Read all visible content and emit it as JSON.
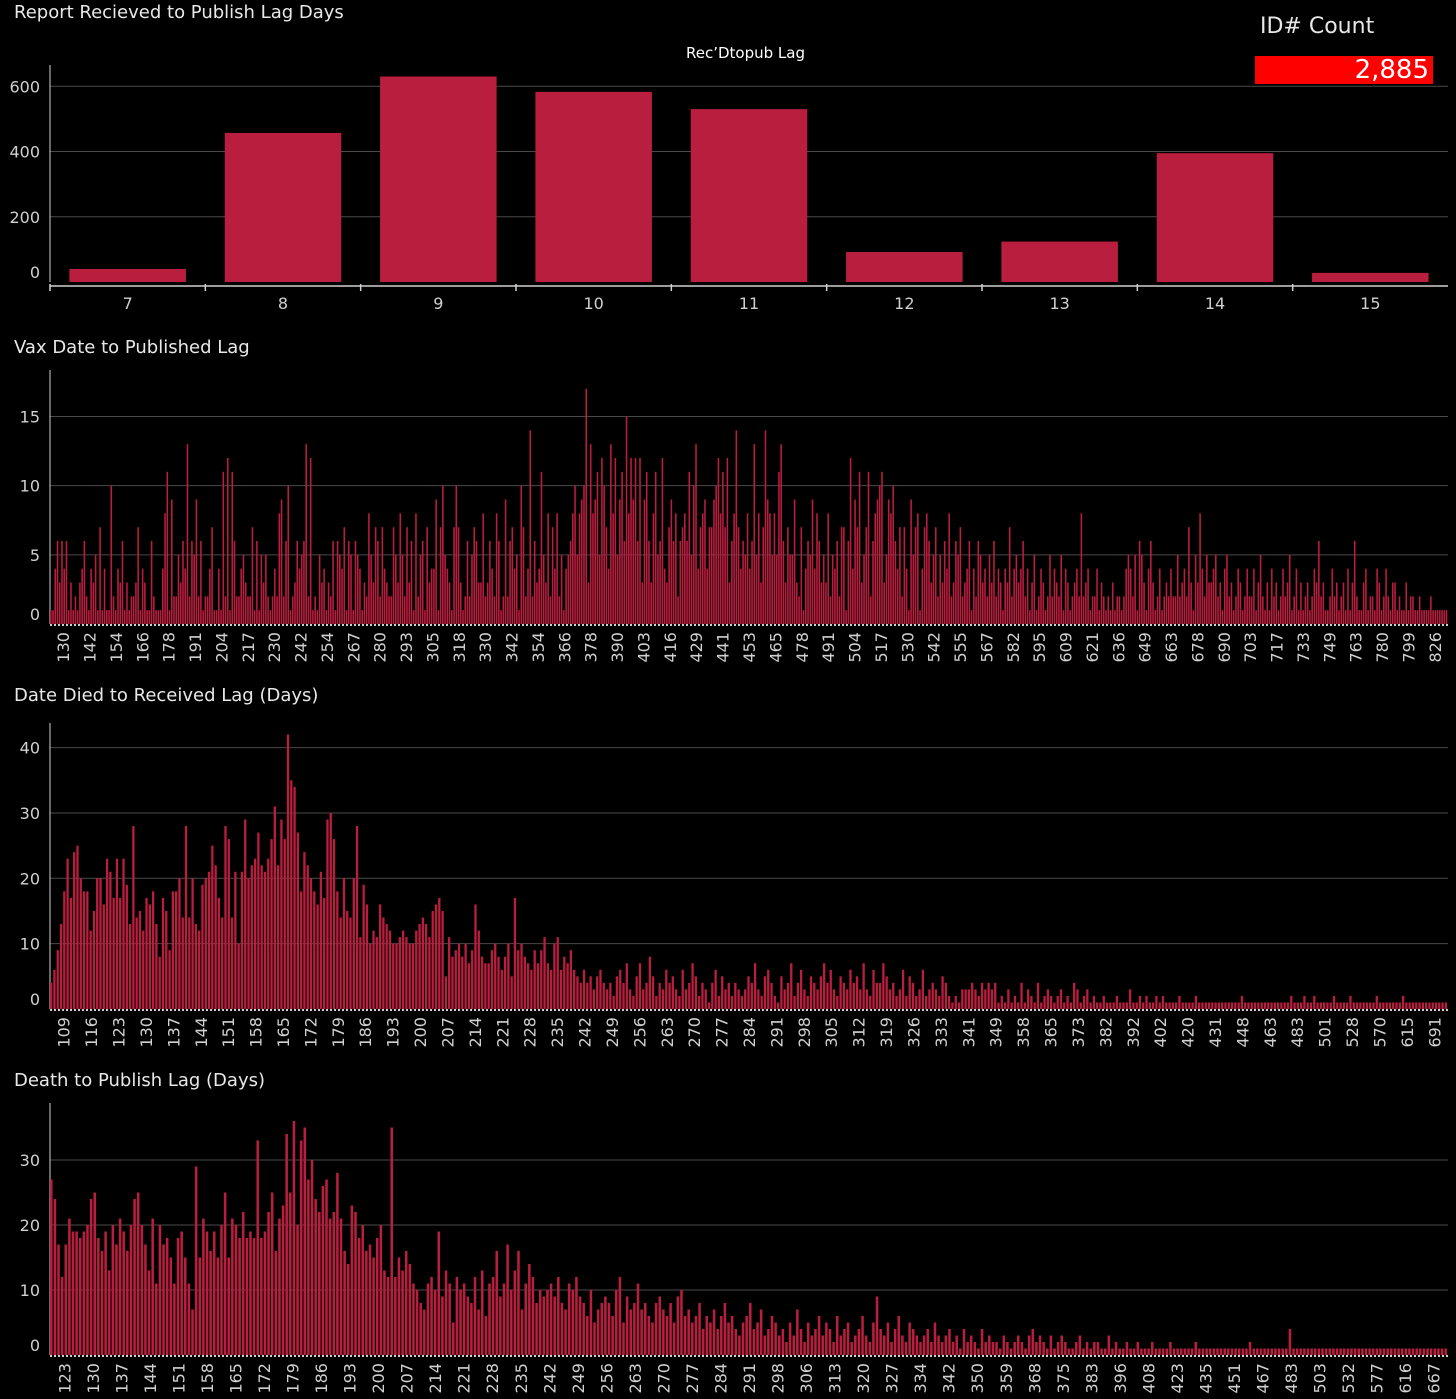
{
  "kpi": {
    "label": "ID# Count",
    "value": "2,885"
  },
  "colors": {
    "bar": "#b91e3f",
    "grid": "#4a4a4a",
    "axis": "#d0d0d0",
    "kpi": "#ff0000"
  },
  "chart_data": [
    {
      "type": "bar",
      "title": "Report Recieved to Publish Lag Days",
      "subtitle": "Rec’Dtopub Lag",
      "categories": [
        "7",
        "8",
        "9",
        "10",
        "11",
        "12",
        "13",
        "14",
        "15"
      ],
      "values": [
        40,
        457,
        630,
        583,
        530,
        92,
        124,
        395,
        28
      ],
      "ylim": [
        0,
        650
      ],
      "yticks": [
        0,
        200,
        400,
        600
      ],
      "grid": true
    },
    {
      "type": "bar",
      "title": "Vax Date to Published Lag",
      "x_tick_labels": [
        "130",
        "142",
        "154",
        "166",
        "178",
        "191",
        "204",
        "217",
        "230",
        "242",
        "254",
        "267",
        "280",
        "293",
        "305",
        "318",
        "330",
        "342",
        "354",
        "366",
        "378",
        "390",
        "403",
        "416",
        "429",
        "441",
        "453",
        "465",
        "478",
        "491",
        "504",
        "517",
        "530",
        "542",
        "555",
        "567",
        "582",
        "595",
        "609",
        "621",
        "636",
        "649",
        "663",
        "678",
        "690",
        "703",
        "717",
        "733",
        "749",
        "763",
        "780",
        "799",
        "826"
      ],
      "values": [
        1,
        1,
        4,
        6,
        3,
        6,
        4,
        6,
        1,
        3,
        1,
        2,
        1,
        3,
        4,
        6,
        2,
        1,
        4,
        3,
        5,
        1,
        7,
        1,
        4,
        1,
        1,
        10,
        2,
        1,
        4,
        3,
        6,
        1,
        3,
        1,
        2,
        2,
        3,
        7,
        1,
        4,
        3,
        1,
        1,
        6,
        2,
        1,
        1,
        1,
        4,
        8,
        11,
        1,
        9,
        2,
        2,
        5,
        3,
        6,
        4,
        13,
        2,
        6,
        5,
        9,
        2,
        6,
        1,
        2,
        2,
        4,
        7,
        1,
        1,
        4,
        1,
        11,
        2,
        12,
        1,
        11,
        6,
        2,
        2,
        4,
        5,
        3,
        2,
        2,
        7,
        1,
        6,
        1,
        5,
        3,
        5,
        2,
        1,
        2,
        4,
        2,
        8,
        9,
        2,
        6,
        10,
        1,
        2,
        3,
        6,
        4,
        5,
        6,
        13,
        2,
        12,
        1,
        2,
        1,
        5,
        3,
        4,
        1,
        3,
        2,
        6,
        1,
        6,
        5,
        4,
        7,
        1,
        6,
        5,
        1,
        6,
        5,
        4,
        1,
        3,
        2,
        8,
        5,
        3,
        7,
        6,
        2,
        7,
        4,
        3,
        2,
        2,
        7,
        5,
        3,
        8,
        5,
        2,
        7,
        3,
        6,
        1,
        8,
        2,
        5,
        6,
        1,
        7,
        3,
        4,
        4,
        9,
        1,
        7,
        10,
        5,
        4,
        3,
        1,
        7,
        10,
        7,
        3,
        1,
        2,
        6,
        2,
        5,
        7,
        6,
        3,
        3,
        8,
        2,
        3,
        6,
        4,
        2,
        8,
        6,
        1,
        2,
        9,
        2,
        6,
        7,
        4,
        5,
        1,
        10,
        7,
        2,
        4,
        14,
        2,
        6,
        3,
        4,
        11,
        5,
        3,
        8,
        2,
        7,
        4,
        8,
        2,
        5,
        1,
        4,
        5,
        6,
        8,
        10,
        5,
        8,
        9,
        10,
        17,
        3,
        13,
        8,
        9,
        11,
        5,
        12,
        10,
        7,
        4,
        13,
        8,
        12,
        5,
        9,
        11,
        6,
        15,
        8,
        12,
        9,
        12,
        6,
        12,
        3,
        9,
        11,
        6,
        3,
        8,
        11,
        5,
        6,
        12,
        4,
        3,
        7,
        9,
        6,
        8,
        2,
        6,
        7,
        8,
        6,
        11,
        5,
        10,
        13,
        4,
        7,
        8,
        9,
        4,
        7,
        7,
        9,
        10,
        12,
        8,
        11,
        7,
        12,
        3,
        6,
        8,
        14,
        7,
        4,
        6,
        5,
        8,
        4,
        6,
        13,
        5,
        8,
        3,
        7,
        14,
        9,
        8,
        5,
        8,
        5,
        11,
        13,
        6,
        3,
        7,
        5,
        5,
        9,
        3,
        2,
        7,
        1,
        4,
        6,
        5,
        9,
        4,
        8,
        6,
        3,
        5,
        3,
        8,
        2,
        5,
        4,
        6,
        2,
        7,
        7,
        1,
        6,
        12,
        4,
        9,
        7,
        11,
        3,
        5,
        7,
        11,
        2,
        6,
        8,
        9,
        10,
        11,
        3,
        5,
        9,
        8,
        10,
        6,
        4,
        7,
        2,
        7,
        4,
        1,
        9,
        5,
        7,
        8,
        1,
        4,
        7,
        8,
        6,
        3,
        5,
        7,
        2,
        5,
        3,
        6,
        4,
        8,
        2,
        3,
        6,
        5,
        7,
        2,
        3,
        4,
        6,
        1,
        4,
        2,
        6,
        5,
        3,
        4,
        2,
        5,
        3,
        6,
        2,
        4,
        3,
        1,
        4,
        3,
        7,
        2,
        4,
        5,
        3,
        4,
        6,
        2,
        4,
        1,
        3,
        5,
        1,
        2,
        4,
        3,
        1,
        2,
        5,
        2,
        4,
        3,
        2,
        5,
        1,
        4,
        3,
        1,
        2,
        3,
        4,
        2,
        8,
        2,
        3,
        4,
        1,
        2,
        2,
        4,
        1,
        3,
        2,
        1,
        2,
        1,
        3,
        1,
        2,
        2,
        1,
        2,
        4,
        5,
        4,
        2,
        5,
        1,
        6,
        5,
        3,
        1,
        4,
        6,
        3,
        1,
        2,
        4,
        1,
        2,
        3,
        2,
        4,
        2,
        2,
        5,
        2,
        3,
        4,
        2,
        7,
        3,
        1,
        5,
        3,
        8,
        4,
        2,
        5,
        3,
        3,
        4,
        5,
        2,
        3,
        1,
        4,
        5,
        2,
        3,
        1,
        2,
        4,
        3,
        1,
        2,
        4,
        2,
        2,
        4,
        1,
        3,
        5,
        2,
        1,
        3,
        1,
        4,
        2,
        3,
        1,
        2,
        4,
        2,
        3,
        5,
        1,
        2,
        4,
        1,
        3,
        1,
        2,
        3,
        1,
        2,
        4,
        3,
        6,
        2,
        3,
        1,
        1,
        2,
        4,
        2,
        3,
        1,
        2,
        3,
        1,
        4,
        1,
        3,
        6,
        2,
        1,
        1,
        3,
        4,
        1,
        2,
        2,
        1,
        4,
        3,
        1,
        2,
        4,
        2,
        1,
        3,
        3,
        1,
        2,
        1,
        1,
        3,
        1,
        2,
        2,
        1,
        1,
        2,
        1,
        1,
        1,
        1,
        2,
        1,
        1,
        1,
        1,
        1,
        1,
        1
      ],
      "ylim": [
        0,
        18
      ],
      "yticks": [
        0,
        5,
        10,
        15
      ],
      "grid": true
    },
    {
      "type": "bar",
      "title": "Date Died to Received  Lag (Days)",
      "x_tick_labels": [
        "109",
        "116",
        "123",
        "130",
        "137",
        "144",
        "151",
        "158",
        "165",
        "172",
        "179",
        "186",
        "193",
        "200",
        "207",
        "214",
        "221",
        "228",
        "235",
        "242",
        "249",
        "256",
        "263",
        "270",
        "277",
        "284",
        "291",
        "298",
        "305",
        "312",
        "319",
        "326",
        "333",
        "341",
        "349",
        "358",
        "365",
        "373",
        "382",
        "392",
        "402",
        "420",
        "431",
        "448",
        "463",
        "483",
        "501",
        "528",
        "570",
        "615",
        "691"
      ],
      "values": [
        4,
        6,
        9,
        13,
        18,
        23,
        17,
        24,
        25,
        20,
        18,
        18,
        12,
        15,
        20,
        20,
        16,
        23,
        21,
        17,
        23,
        17,
        23,
        19,
        13,
        28,
        14,
        15,
        12,
        17,
        16,
        18,
        13,
        8,
        17,
        15,
        9,
        18,
        18,
        20,
        14,
        28,
        14,
        20,
        13,
        12,
        19,
        20,
        21,
        25,
        22,
        17,
        14,
        28,
        26,
        14,
        21,
        10,
        21,
        29,
        20,
        22,
        23,
        27,
        22,
        21,
        23,
        26,
        31,
        22,
        29,
        26,
        42,
        35,
        34,
        27,
        18,
        24,
        22,
        20,
        18,
        16,
        21,
        17,
        29,
        30,
        26,
        18,
        14,
        20,
        15,
        14,
        20,
        28,
        11,
        19,
        16,
        10,
        12,
        11,
        16,
        14,
        13,
        12,
        10,
        10,
        11,
        12,
        11,
        10,
        10,
        12,
        13,
        14,
        13,
        11,
        15,
        16,
        17,
        15,
        5,
        11,
        8,
        9,
        10,
        8,
        10,
        7,
        9,
        16,
        12,
        8,
        7,
        7,
        9,
        10,
        8,
        6,
        8,
        10,
        5,
        17,
        9,
        10,
        8,
        7,
        6,
        9,
        7,
        9,
        11,
        7,
        6,
        10,
        11,
        6,
        8,
        7,
        9,
        6,
        5,
        4,
        6,
        4,
        5,
        3,
        5,
        6,
        4,
        3,
        4,
        2,
        5,
        6,
        4,
        7,
        3,
        2,
        5,
        7,
        3,
        4,
        8,
        5,
        2,
        4,
        3,
        6,
        4,
        5,
        3,
        2,
        6,
        3,
        4,
        7,
        5,
        2,
        4,
        3,
        1,
        4,
        6,
        2,
        5,
        3,
        4,
        2,
        4,
        3,
        2,
        3,
        5,
        4,
        7,
        3,
        2,
        5,
        6,
        4,
        2,
        1,
        5,
        3,
        4,
        7,
        2,
        4,
        6,
        3,
        2,
        5,
        4,
        3,
        5,
        7,
        4,
        6,
        3,
        2,
        5,
        4,
        3,
        6,
        4,
        5,
        3,
        7,
        3,
        2,
        6,
        4,
        4,
        7,
        5,
        3,
        4,
        2,
        3,
        6,
        2,
        5,
        4,
        2,
        3,
        6,
        2,
        3,
        4,
        3,
        2,
        5,
        4,
        2,
        1,
        2,
        1,
        3,
        3,
        3,
        4,
        3,
        2,
        4,
        3,
        4,
        3,
        4,
        1,
        2,
        1,
        3,
        1,
        2,
        1,
        4,
        1,
        3,
        2,
        1,
        4,
        1,
        2,
        3,
        2,
        1,
        2,
        3,
        1,
        2,
        1,
        4,
        3,
        1,
        2,
        3,
        1,
        2,
        1,
        1,
        2,
        1,
        1,
        1,
        2,
        1,
        1,
        1,
        3,
        1,
        1,
        2,
        1,
        2,
        1,
        1,
        2,
        1,
        2,
        1,
        1,
        1,
        1,
        2,
        1,
        1,
        1,
        1,
        2,
        1,
        1,
        1,
        1,
        1,
        1,
        1,
        1,
        1,
        1,
        1,
        1,
        1,
        2,
        1,
        1,
        1,
        1,
        1,
        1,
        1,
        1,
        1,
        1,
        1,
        1,
        1,
        1,
        2,
        1,
        1,
        1,
        2,
        1,
        1,
        2,
        1,
        1,
        1,
        1,
        1,
        2,
        1,
        1,
        1,
        1,
        2,
        1,
        1,
        1,
        1,
        1,
        1,
        1,
        2,
        1,
        1,
        1,
        1,
        1,
        1,
        1,
        2,
        1,
        1,
        1,
        1,
        1,
        1,
        1,
        1,
        1,
        1,
        1,
        1,
        1
      ],
      "ylim": [
        0,
        43
      ],
      "yticks": [
        0,
        10,
        20,
        30,
        40
      ],
      "grid": true
    },
    {
      "type": "bar",
      "title": "Death to Publish  Lag (Days)",
      "x_tick_labels": [
        "123",
        "130",
        "137",
        "144",
        "151",
        "158",
        "165",
        "172",
        "179",
        "186",
        "193",
        "200",
        "207",
        "214",
        "221",
        "228",
        "235",
        "242",
        "249",
        "256",
        "263",
        "270",
        "277",
        "284",
        "291",
        "298",
        "306",
        "313",
        "320",
        "327",
        "334",
        "342",
        "350",
        "359",
        "368",
        "375",
        "383",
        "396",
        "408",
        "423",
        "435",
        "451",
        "467",
        "483",
        "503",
        "532",
        "577",
        "616",
        "667"
      ],
      "values": [
        27,
        24,
        17,
        12,
        17,
        21,
        19,
        19,
        18,
        19,
        20,
        24,
        25,
        18,
        16,
        19,
        13,
        20,
        17,
        21,
        19,
        16,
        20,
        24,
        25,
        20,
        17,
        13,
        21,
        11,
        20,
        17,
        18,
        15,
        11,
        18,
        19,
        15,
        11,
        7,
        29,
        15,
        21,
        19,
        16,
        19,
        15,
        20,
        25,
        15,
        21,
        20,
        18,
        22,
        18,
        19,
        18,
        33,
        18,
        19,
        22,
        25,
        16,
        21,
        23,
        34,
        25,
        36,
        20,
        33,
        35,
        27,
        30,
        24,
        22,
        26,
        27,
        21,
        22,
        28,
        21,
        16,
        14,
        23,
        22,
        18,
        20,
        16,
        17,
        15,
        18,
        20,
        13,
        12,
        35,
        12,
        15,
        13,
        16,
        14,
        11,
        10,
        8,
        7,
        11,
        12,
        10,
        19,
        9,
        13,
        11,
        5,
        12,
        10,
        11,
        9,
        8,
        12,
        7,
        13,
        6,
        11,
        12,
        16,
        9,
        11,
        17,
        10,
        13,
        16,
        7,
        11,
        14,
        12,
        8,
        10,
        9,
        10,
        11,
        9,
        12,
        8,
        7,
        11,
        10,
        12,
        9,
        8,
        6,
        10,
        5,
        7,
        8,
        9,
        8,
        6,
        10,
        12,
        5,
        9,
        7,
        8,
        11,
        7,
        8,
        6,
        5,
        8,
        9,
        7,
        6,
        8,
        5,
        9,
        10,
        6,
        7,
        5,
        6,
        8,
        4,
        6,
        5,
        7,
        4,
        6,
        8,
        5,
        6,
        4,
        3,
        5,
        6,
        8,
        4,
        5,
        7,
        3,
        4,
        6,
        5,
        3,
        4,
        2,
        5,
        3,
        7,
        4,
        2,
        5,
        3,
        4,
        6,
        3,
        5,
        4,
        2,
        6,
        3,
        4,
        5,
        2,
        3,
        4,
        6,
        3,
        2,
        5,
        9,
        4,
        3,
        5,
        2,
        4,
        6,
        3,
        2,
        5,
        4,
        3,
        2,
        3,
        4,
        2,
        5,
        3,
        2,
        3,
        4,
        2,
        3,
        1,
        4,
        2,
        3,
        2,
        1,
        4,
        2,
        3,
        2,
        2,
        1,
        3,
        2,
        1,
        2,
        3,
        2,
        1,
        3,
        4,
        2,
        3,
        2,
        1,
        3,
        1,
        2,
        3,
        2,
        1,
        1,
        2,
        3,
        1,
        2,
        1,
        2,
        2,
        1,
        1,
        3,
        1,
        2,
        1,
        1,
        2,
        1,
        1,
        2,
        1,
        1,
        1,
        2,
        1,
        1,
        1,
        1,
        2,
        1,
        1,
        1,
        1,
        1,
        1,
        2,
        1,
        1,
        1,
        1,
        1,
        1,
        1,
        1,
        1,
        1,
        1,
        1,
        1,
        1,
        2,
        1,
        1,
        1,
        1,
        1,
        1,
        1,
        1,
        1,
        1,
        4,
        1,
        1,
        1,
        1,
        1,
        1,
        1,
        1,
        1,
        1,
        1,
        1,
        1,
        1,
        1,
        1,
        1,
        1,
        1,
        1,
        1,
        1,
        1,
        1,
        1,
        1,
        1,
        1,
        1,
        1,
        1,
        1,
        1,
        1,
        1,
        1,
        1,
        1,
        1,
        1,
        1,
        1,
        1
      ],
      "ylim": [
        0,
        38
      ],
      "yticks": [
        0,
        10,
        20,
        30
      ],
      "grid": true
    }
  ]
}
